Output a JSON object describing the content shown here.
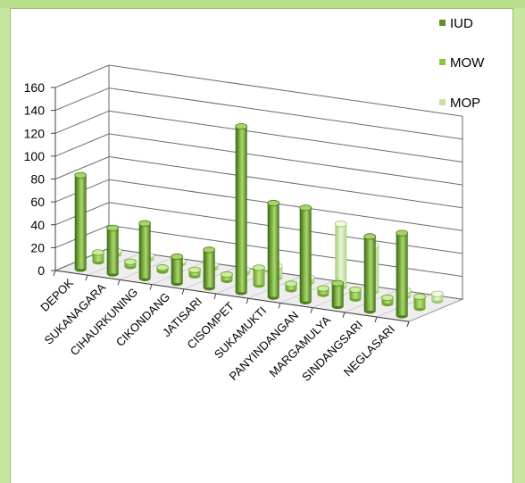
{
  "chart_data": {
    "type": "bar",
    "subtype": "3d-cylinder-column",
    "categories": [
      "DEPOK",
      "SUKANAGARA",
      "CIHAURKUNING",
      "CIKONDANG",
      "JATISARI",
      "CISOMPET",
      "SUKAMUKTI",
      "PANYINDANGAN",
      "MARGAMULYA",
      "SINDANGSARI",
      "NEGLASARI"
    ],
    "series": [
      {
        "name": "IUD",
        "color": "#5e8f2a",
        "values": [
          82,
          40,
          48,
          23,
          33,
          145,
          82,
          82,
          20,
          65,
          72
        ]
      },
      {
        "name": "MOW",
        "color": "#8cc63f",
        "values": [
          8,
          4,
          3,
          5,
          5,
          15,
          5,
          5,
          8,
          5,
          10
        ]
      },
      {
        "name": "MOP",
        "color": "#c5e39c",
        "values": [
          3,
          3,
          2,
          3,
          3,
          10,
          4,
          55,
          40,
          5,
          6
        ]
      }
    ],
    "y_ticks": [
      0,
      20,
      40,
      60,
      80,
      100,
      120,
      140,
      160
    ],
    "ylim": [
      0,
      160
    ],
    "grid": true,
    "legend": "top-right"
  },
  "colors": {
    "frame": "#c6e6a0",
    "panel": "#ffffff",
    "grid": "#6b6b6b",
    "floor": "#eeeeee"
  }
}
